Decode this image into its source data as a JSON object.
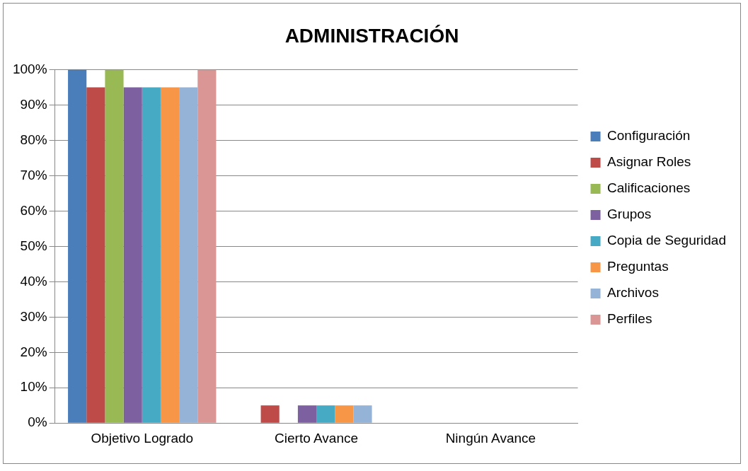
{
  "chart_data": {
    "type": "bar",
    "title": "ADMINISTRACIÓN",
    "categories": [
      "Objetivo Logrado",
      "Cierto Avance",
      "Ningún Avance"
    ],
    "series": [
      {
        "name": "Configuración",
        "color": "#4a7ebb",
        "values": [
          100,
          0,
          0
        ]
      },
      {
        "name": "Asignar Roles",
        "color": "#be4b48",
        "values": [
          95,
          5,
          0
        ]
      },
      {
        "name": "Calificaciones",
        "color": "#98b954",
        "values": [
          100,
          0,
          0
        ]
      },
      {
        "name": "Grupos",
        "color": "#7d60a0",
        "values": [
          95,
          5,
          0
        ]
      },
      {
        "name": "Copia de Seguridad",
        "color": "#46aac5",
        "values": [
          95,
          5,
          0
        ]
      },
      {
        "name": "Preguntas",
        "color": "#f79646",
        "values": [
          95,
          5,
          0
        ]
      },
      {
        "name": "Archivos",
        "color": "#95b3d7",
        "values": [
          95,
          5,
          0
        ]
      },
      {
        "name": "Perfiles",
        "color": "#d99694",
        "values": [
          100,
          0,
          0
        ]
      }
    ],
    "ylim": [
      0,
      100
    ],
    "yticks": [
      {
        "value": 0,
        "label": "0%"
      },
      {
        "value": 10,
        "label": "10%"
      },
      {
        "value": 20,
        "label": "20%"
      },
      {
        "value": 30,
        "label": "30%"
      },
      {
        "value": 40,
        "label": "40%"
      },
      {
        "value": 50,
        "label": "50%"
      },
      {
        "value": 60,
        "label": "60%"
      },
      {
        "value": 70,
        "label": "70%"
      },
      {
        "value": 80,
        "label": "80%"
      },
      {
        "value": 90,
        "label": "90%"
      },
      {
        "value": 100,
        "label": "100%"
      }
    ],
    "grid": "y",
    "legend": "right"
  }
}
